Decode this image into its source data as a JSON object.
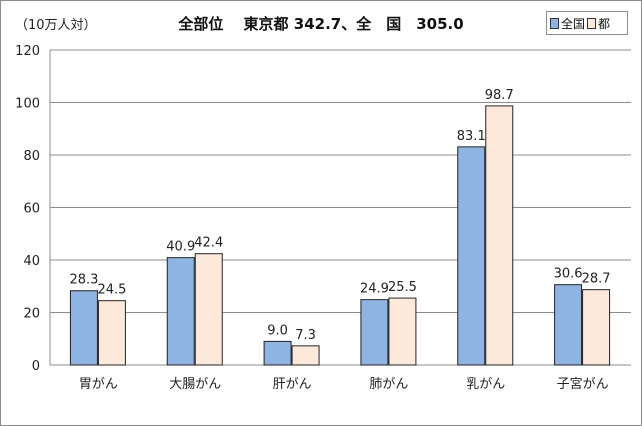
{
  "unit_label": "（10万人対）",
  "chart_data": {
    "type": "bar",
    "title": "全部位　 東京都 342.7、全　国　305.0",
    "categories": [
      "胃がん",
      "大腸がん",
      "肝がん",
      "肺がん",
      "乳がん",
      "子宮がん"
    ],
    "series": [
      {
        "name": "全国",
        "values": [
          28.3,
          40.9,
          9.0,
          24.9,
          83.1,
          30.6
        ],
        "color": "#8eb4e3"
      },
      {
        "name": "都",
        "values": [
          24.5,
          42.4,
          7.3,
          25.5,
          98.7,
          28.7
        ],
        "color": "#fde9d9"
      }
    ],
    "value_labels": [
      [
        "28.3",
        "40.9",
        "9.0",
        "24.9",
        "83.1",
        "30.6"
      ],
      [
        "24.5",
        "42.4",
        "7.3",
        "25.5",
        "98.7",
        "28.7"
      ]
    ],
    "yticks": [
      "0",
      "20",
      "40",
      "60",
      "80",
      "100",
      "120"
    ],
    "ylim": [
      0,
      120
    ],
    "grid": true,
    "legend_position": "top-right"
  }
}
